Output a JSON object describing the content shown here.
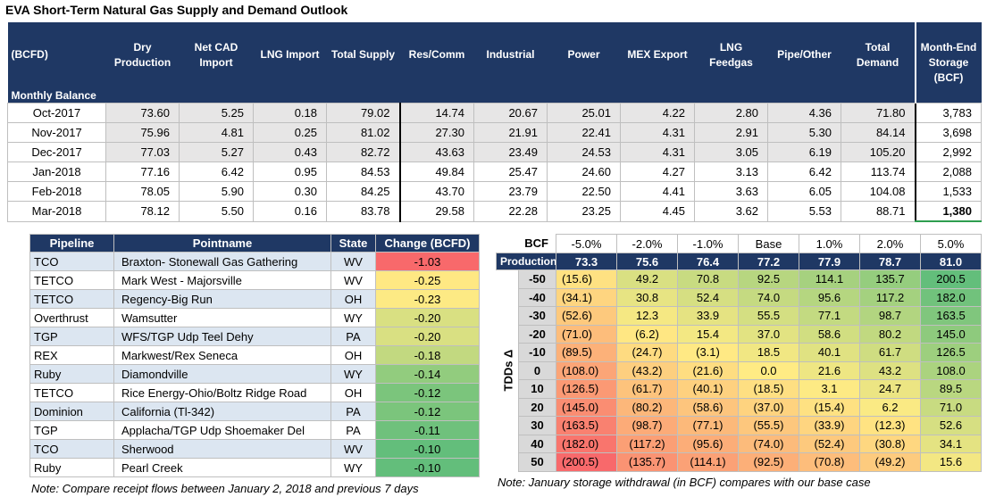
{
  "title": "EVA Short-Term Natural Gas Supply and Demand Outlook",
  "table": {
    "headers": [
      "(BCFD)",
      "Dry Production",
      "Net CAD Import",
      "LNG Import",
      "Total Supply",
      "Res/Comm",
      "Industrial",
      "Power",
      "MEX Export",
      "LNG Feedgas",
      "Pipe/Other",
      "Total Demand",
      "Month-End Storage (BCF)"
    ],
    "section": "Monthly Balance",
    "rows": [
      [
        "Oct-2017",
        "73.60",
        "5.25",
        "0.18",
        "79.02",
        "14.74",
        "20.67",
        "25.01",
        "4.22",
        "2.80",
        "4.36",
        "71.80",
        "3,783"
      ],
      [
        "Nov-2017",
        "75.96",
        "4.81",
        "0.25",
        "81.02",
        "27.30",
        "21.91",
        "22.41",
        "4.31",
        "2.91",
        "5.30",
        "84.14",
        "3,698"
      ],
      [
        "Dec-2017",
        "77.03",
        "5.27",
        "0.43",
        "82.72",
        "43.63",
        "23.49",
        "24.53",
        "4.31",
        "3.05",
        "6.19",
        "105.20",
        "2,992"
      ],
      [
        "Jan-2018",
        "77.16",
        "6.42",
        "0.95",
        "84.53",
        "49.84",
        "25.47",
        "24.60",
        "4.27",
        "3.13",
        "6.42",
        "113.74",
        "2,088"
      ],
      [
        "Feb-2018",
        "78.05",
        "5.90",
        "0.30",
        "84.25",
        "43.70",
        "23.79",
        "22.50",
        "4.41",
        "3.63",
        "6.05",
        "104.08",
        "1,533"
      ],
      [
        "Mar-2018",
        "78.12",
        "5.50",
        "0.16",
        "83.78",
        "29.58",
        "22.28",
        "23.25",
        "4.45",
        "3.62",
        "5.53",
        "88.71",
        "1,380"
      ]
    ]
  },
  "pipelines": {
    "headers": [
      "Pipeline",
      "Pointname",
      "State",
      "Change (BCFD)"
    ],
    "rows": [
      [
        "TCO",
        "Braxton- Stonewall Gas Gathering",
        "WV",
        {
          "value": -1.03,
          "label": "-1.03"
        }
      ],
      [
        "TETCO",
        "Mark West - Majorsville",
        "WV",
        {
          "value": -0.25,
          "label": "-0.25"
        }
      ],
      [
        "TETCO",
        "Regency-Big Run",
        "OH",
        {
          "value": -0.23,
          "label": "-0.23"
        }
      ],
      [
        "Overthrust",
        "Wamsutter",
        "WY",
        {
          "value": -0.2,
          "label": "-0.20"
        }
      ],
      [
        "TGP",
        "WFS/TGP Udp Teel Dehy",
        "PA",
        {
          "value": -0.2,
          "label": "-0.20"
        }
      ],
      [
        "REX",
        "Markwest/Rex Seneca",
        "OH",
        {
          "value": -0.18,
          "label": "-0.18"
        }
      ],
      [
        "Ruby",
        "Diamondville",
        "WY",
        {
          "value": -0.14,
          "label": "-0.14"
        }
      ],
      [
        "TETCO",
        "Rice Energy-Ohio/Boltz Ridge Road",
        "OH",
        {
          "value": -0.12,
          "label": "-0.12"
        }
      ],
      [
        "Dominion",
        "California (Tl-342)",
        "PA",
        {
          "value": -0.12,
          "label": "-0.12"
        }
      ],
      [
        "TGP",
        "Applacha/TGP Udp Shoemaker Del",
        "PA",
        {
          "value": -0.11,
          "label": "-0.11"
        }
      ],
      [
        "TCO",
        "Sherwood",
        "WV",
        {
          "value": -0.1,
          "label": "-0.10"
        }
      ],
      [
        "Ruby",
        "Pearl Creek",
        "WY",
        {
          "value": -0.1,
          "label": "-0.10"
        }
      ]
    ],
    "note": "Note: Compare receipt flows between January 2, 2018 and previous 7 days"
  },
  "sensitivity": {
    "corner": "BCF",
    "headers": [
      "-5.0%",
      "-2.0%",
      "-1.0%",
      "Base",
      "1.0%",
      "2.0%",
      "5.0%"
    ],
    "production_label": "Production",
    "production": [
      "73.3",
      "75.6",
      "76.4",
      "77.2",
      "77.9",
      "78.7",
      "81.0"
    ],
    "axis_label": "TDDs Δ",
    "row_labels": [
      "-50",
      "-40",
      "-30",
      "-20",
      "-10",
      "0",
      "10",
      "20",
      "30",
      "40",
      "50"
    ],
    "rows": [
      [
        {
          "value": -15.6,
          "label": "(15.6)"
        },
        {
          "value": 49.2,
          "label": "49.2"
        },
        {
          "value": 70.8,
          "label": "70.8"
        },
        {
          "value": 92.5,
          "label": "92.5"
        },
        {
          "value": 114.1,
          "label": "114.1"
        },
        {
          "value": 135.7,
          "label": "135.7"
        },
        {
          "value": 200.5,
          "label": "200.5"
        }
      ],
      [
        {
          "value": -34.1,
          "label": "(34.1)"
        },
        {
          "value": 30.8,
          "label": "30.8"
        },
        {
          "value": 52.4,
          "label": "52.4"
        },
        {
          "value": 74.0,
          "label": "74.0"
        },
        {
          "value": 95.6,
          "label": "95.6"
        },
        {
          "value": 117.2,
          "label": "117.2"
        },
        {
          "value": 182.0,
          "label": "182.0"
        }
      ],
      [
        {
          "value": -52.6,
          "label": "(52.6)"
        },
        {
          "value": 12.3,
          "label": "12.3"
        },
        {
          "value": 33.9,
          "label": "33.9"
        },
        {
          "value": 55.5,
          "label": "55.5"
        },
        {
          "value": 77.1,
          "label": "77.1"
        },
        {
          "value": 98.7,
          "label": "98.7"
        },
        {
          "value": 163.5,
          "label": "163.5"
        }
      ],
      [
        {
          "value": -71.0,
          "label": "(71.0)"
        },
        {
          "value": -6.2,
          "label": "(6.2)"
        },
        {
          "value": 15.4,
          "label": "15.4"
        },
        {
          "value": 37.0,
          "label": "37.0"
        },
        {
          "value": 58.6,
          "label": "58.6"
        },
        {
          "value": 80.2,
          "label": "80.2"
        },
        {
          "value": 145.0,
          "label": "145.0"
        }
      ],
      [
        {
          "value": -89.5,
          "label": "(89.5)"
        },
        {
          "value": -24.7,
          "label": "(24.7)"
        },
        {
          "value": -3.1,
          "label": "(3.1)"
        },
        {
          "value": 18.5,
          "label": "18.5"
        },
        {
          "value": 40.1,
          "label": "40.1"
        },
        {
          "value": 61.7,
          "label": "61.7"
        },
        {
          "value": 126.5,
          "label": "126.5"
        }
      ],
      [
        {
          "value": -108.0,
          "label": "(108.0)"
        },
        {
          "value": -43.2,
          "label": "(43.2)"
        },
        {
          "value": -21.6,
          "label": "(21.6)"
        },
        {
          "value": 0.0,
          "label": "0.0"
        },
        {
          "value": 21.6,
          "label": "21.6"
        },
        {
          "value": 43.2,
          "label": "43.2"
        },
        {
          "value": 108.0,
          "label": "108.0"
        }
      ],
      [
        {
          "value": -126.5,
          "label": "(126.5)"
        },
        {
          "value": -61.7,
          "label": "(61.7)"
        },
        {
          "value": -40.1,
          "label": "(40.1)"
        },
        {
          "value": -18.5,
          "label": "(18.5)"
        },
        {
          "value": 3.1,
          "label": "3.1"
        },
        {
          "value": 24.7,
          "label": "24.7"
        },
        {
          "value": 89.5,
          "label": "89.5"
        }
      ],
      [
        {
          "value": -145.0,
          "label": "(145.0)"
        },
        {
          "value": -80.2,
          "label": "(80.2)"
        },
        {
          "value": -58.6,
          "label": "(58.6)"
        },
        {
          "value": -37.0,
          "label": "(37.0)"
        },
        {
          "value": -15.4,
          "label": "(15.4)"
        },
        {
          "value": 6.2,
          "label": "6.2"
        },
        {
          "value": 71.0,
          "label": "71.0"
        }
      ],
      [
        {
          "value": -163.5,
          "label": "(163.5)"
        },
        {
          "value": -98.7,
          "label": "(98.7)"
        },
        {
          "value": -77.1,
          "label": "(77.1)"
        },
        {
          "value": -55.5,
          "label": "(55.5)"
        },
        {
          "value": -33.9,
          "label": "(33.9)"
        },
        {
          "value": -12.3,
          "label": "(12.3)"
        },
        {
          "value": 52.6,
          "label": "52.6"
        }
      ],
      [
        {
          "value": -182.0,
          "label": "(182.0)"
        },
        {
          "value": -117.2,
          "label": "(117.2)"
        },
        {
          "value": -95.6,
          "label": "(95.6)"
        },
        {
          "value": -74.0,
          "label": "(74.0)"
        },
        {
          "value": -52.4,
          "label": "(52.4)"
        },
        {
          "value": -30.8,
          "label": "(30.8)"
        },
        {
          "value": 34.1,
          "label": "34.1"
        }
      ],
      [
        {
          "value": -200.5,
          "label": "(200.5)"
        },
        {
          "value": -135.7,
          "label": "(135.7)"
        },
        {
          "value": -114.1,
          "label": "(114.1)"
        },
        {
          "value": -92.5,
          "label": "(92.5)"
        },
        {
          "value": -70.8,
          "label": "(70.8)"
        },
        {
          "value": -49.2,
          "label": "(49.2)"
        },
        {
          "value": 15.6,
          "label": "15.6"
        }
      ]
    ],
    "note": "Note: January storage withdrawal (in BCF) compares with our base case"
  }
}
